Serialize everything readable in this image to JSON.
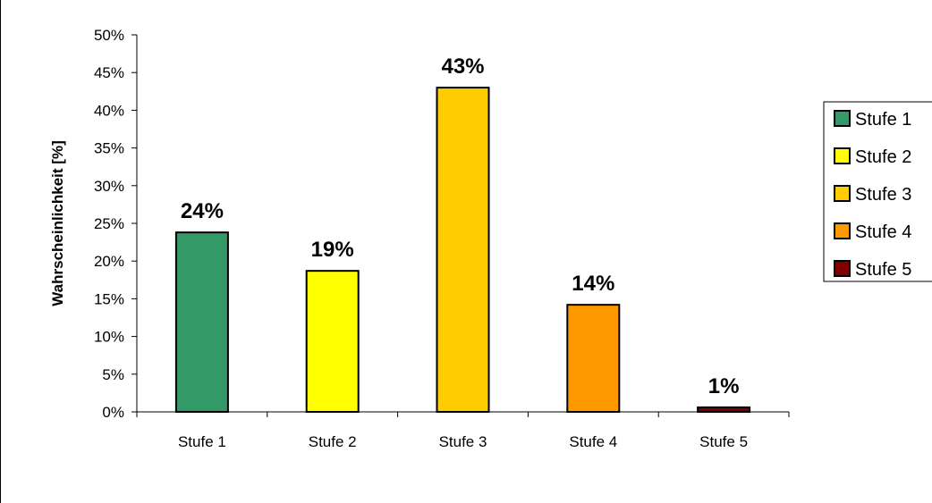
{
  "chart_data": {
    "type": "bar",
    "categories": [
      "Stufe 1",
      "Stufe 2",
      "Stufe 3",
      "Stufe 4",
      "Stufe 5"
    ],
    "values": [
      23.8,
      18.7,
      43.0,
      14.2,
      0.6
    ],
    "data_labels": [
      "24%",
      "19%",
      "43%",
      "14%",
      "1%"
    ],
    "colors": [
      "#339966",
      "#ffff00",
      "#ffcc00",
      "#ff9900",
      "#800000"
    ],
    "title": "",
    "xlabel": "",
    "ylabel": "Wahrscheinlichkeit [%]",
    "ylim": [
      0,
      50
    ],
    "y_tick_step": 5,
    "y_ticks": [
      "0%",
      "5%",
      "10%",
      "15%",
      "20%",
      "25%",
      "30%",
      "35%",
      "40%",
      "45%",
      "50%"
    ],
    "grid": false,
    "legend": {
      "position": "right",
      "entries": [
        "Stufe 1",
        "Stufe 2",
        "Stufe 3",
        "Stufe 4",
        "Stufe 5"
      ]
    }
  }
}
